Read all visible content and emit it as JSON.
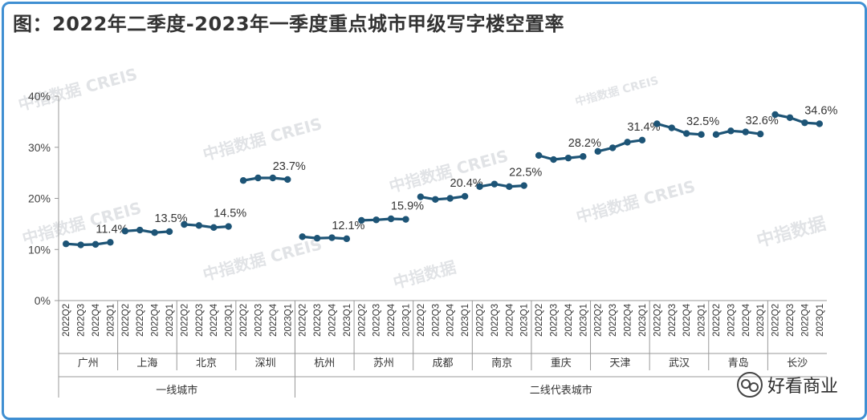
{
  "title": "图：2022年二季度-2023年一季度重点城市甲级写字楼空置率",
  "brand": "好看商业",
  "watermarks": [
    "中指数据 CREIS",
    "中指数据 CREIS",
    "中指数据 CREIS",
    "中指数据 CREIS",
    "中指数据 CREIS",
    "中指数据 CREIS",
    "中指数据 CREIS",
    "中指数据",
    "中指数据"
  ],
  "colors": {
    "line": "#1d5476",
    "frame": "#3f8fd2",
    "axis": "#999999"
  },
  "chart_data": {
    "type": "line",
    "title": "",
    "xlabel": "",
    "ylabel": "",
    "ylim": [
      0,
      40
    ],
    "yticks": [
      "0%",
      "10%",
      "20%",
      "30%",
      "40%"
    ],
    "quarters": [
      "2022Q2",
      "2022Q3",
      "2022Q4",
      "2023Q1"
    ],
    "groups": [
      {
        "name": "一线城市",
        "cities": [
          "广州",
          "上海",
          "北京",
          "深圳"
        ]
      },
      {
        "name": "二线代表城市",
        "cities": [
          "杭州",
          "苏州",
          "成都",
          "南京",
          "重庆",
          "天津",
          "武汉",
          "青岛",
          "长沙"
        ]
      }
    ],
    "series": [
      {
        "city": "广州",
        "values": [
          11.1,
          10.9,
          11.0,
          11.4
        ],
        "label": "11.4%"
      },
      {
        "city": "上海",
        "values": [
          13.6,
          13.8,
          13.3,
          13.5
        ],
        "label": "13.5%"
      },
      {
        "city": "北京",
        "values": [
          14.9,
          14.7,
          14.3,
          14.5
        ],
        "label": "14.5%"
      },
      {
        "city": "深圳",
        "values": [
          23.5,
          24.0,
          24.0,
          23.7
        ],
        "label": "23.7%"
      },
      {
        "city": "杭州",
        "values": [
          12.5,
          12.2,
          12.3,
          12.1
        ],
        "label": "12.1%"
      },
      {
        "city": "苏州",
        "values": [
          15.7,
          15.8,
          16.0,
          15.9
        ],
        "label": "15.9%"
      },
      {
        "city": "成都",
        "values": [
          20.3,
          19.8,
          20.0,
          20.4
        ],
        "label": "20.4%"
      },
      {
        "city": "南京",
        "values": [
          22.3,
          22.8,
          22.3,
          22.5
        ],
        "label": "22.5%"
      },
      {
        "city": "重庆",
        "values": [
          28.4,
          27.6,
          27.9,
          28.2
        ],
        "label": "28.2%"
      },
      {
        "city": "天津",
        "values": [
          29.2,
          29.9,
          31.0,
          31.4
        ],
        "label": "31.4%"
      },
      {
        "city": "武汉",
        "values": [
          34.6,
          33.8,
          32.7,
          32.5
        ],
        "label": "32.5%"
      },
      {
        "city": "青岛",
        "values": [
          32.5,
          33.2,
          33.0,
          32.6
        ],
        "label": "32.6%"
      },
      {
        "city": "长沙",
        "values": [
          36.4,
          35.8,
          34.8,
          34.6
        ],
        "label": "34.6%"
      }
    ]
  }
}
